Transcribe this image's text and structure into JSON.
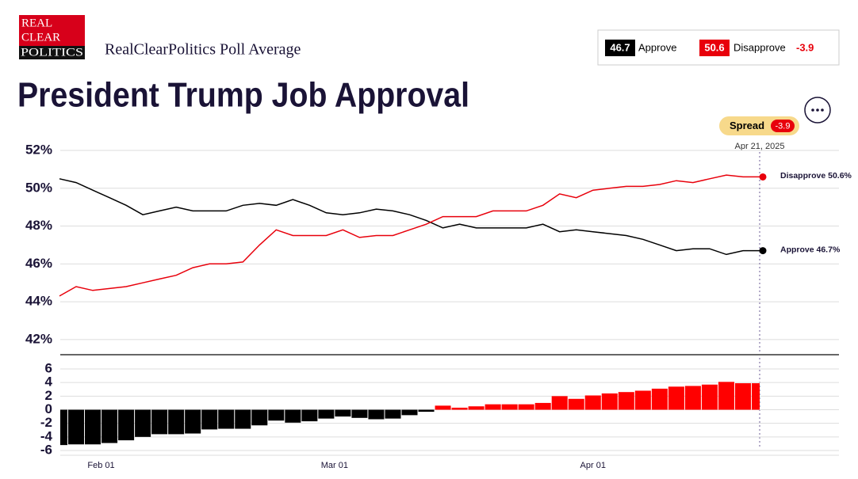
{
  "header": {
    "logo": [
      "REAL",
      "CLEAR",
      "POLITICS"
    ],
    "subtitle": "RealClearPolitics Poll Average",
    "summary": {
      "approve": 46.7,
      "disapprove": 50.6,
      "spread": -3.9
    }
  },
  "chart_data": [
    {
      "type": "line",
      "title": "President Trump Job Approval",
      "x": [
        "2025-01-27",
        "2025-01-29",
        "2025-01-31",
        "2025-02-02",
        "2025-02-04",
        "2025-02-06",
        "2025-02-08",
        "2025-02-10",
        "2025-02-12",
        "2025-02-14",
        "2025-02-16",
        "2025-02-18",
        "2025-02-20",
        "2025-02-22",
        "2025-02-24",
        "2025-02-26",
        "2025-02-28",
        "2025-03-02",
        "2025-03-04",
        "2025-03-06",
        "2025-03-08",
        "2025-03-10",
        "2025-03-12",
        "2025-03-14",
        "2025-03-16",
        "2025-03-18",
        "2025-03-20",
        "2025-03-22",
        "2025-03-24",
        "2025-03-26",
        "2025-03-28",
        "2025-03-30",
        "2025-04-01",
        "2025-04-03",
        "2025-04-05",
        "2025-04-07",
        "2025-04-09",
        "2025-04-11",
        "2025-04-13",
        "2025-04-15",
        "2025-04-17",
        "2025-04-19",
        "2025-04-21"
      ],
      "xlim": [
        "2025-01-27",
        "2025-04-21"
      ],
      "series": [
        {
          "name": "Approve",
          "color": "#000000",
          "values": [
            50.5,
            50.3,
            49.9,
            49.5,
            49.1,
            48.6,
            48.8,
            49.0,
            48.8,
            48.8,
            48.8,
            49.1,
            49.2,
            49.1,
            49.4,
            49.1,
            48.7,
            48.6,
            48.7,
            48.9,
            48.8,
            48.6,
            48.3,
            47.9,
            48.1,
            47.9,
            47.9,
            47.9,
            47.9,
            48.1,
            47.7,
            47.8,
            47.7,
            47.6,
            47.5,
            47.3,
            47.0,
            46.7,
            46.8,
            46.8,
            46.5,
            46.7,
            46.7
          ]
        },
        {
          "name": "Disapprove",
          "color": "#e8000b",
          "values": [
            44.3,
            44.8,
            44.6,
            44.7,
            44.8,
            45.0,
            45.2,
            45.4,
            45.8,
            46.0,
            46.0,
            46.1,
            47.0,
            47.8,
            47.5,
            47.5,
            47.5,
            47.8,
            47.4,
            47.5,
            47.5,
            47.8,
            48.1,
            48.5,
            48.5,
            48.5,
            48.8,
            48.8,
            48.8,
            49.1,
            49.7,
            49.5,
            49.9,
            50.0,
            50.1,
            50.1,
            50.2,
            50.4,
            50.3,
            50.5,
            50.7,
            50.6,
            50.6
          ]
        }
      ],
      "end_labels": [
        "Approve 46.7%",
        "Disapprove 50.6%"
      ],
      "annotation": {
        "label": "Spread",
        "value": -3.9,
        "date": "Apr 21, 2025"
      },
      "ylim": [
        41.2,
        52
      ],
      "yticks": [
        {
          "value": 52,
          "label": "52%"
        },
        {
          "value": 50,
          "label": "50%"
        },
        {
          "value": 48,
          "label": "48%"
        },
        {
          "value": 46,
          "label": "46%"
        },
        {
          "value": 44,
          "label": "44%"
        },
        {
          "value": 42,
          "label": "42%"
        }
      ],
      "grid": true
    },
    {
      "type": "bar",
      "x": [
        "2025-01-27",
        "2025-01-29",
        "2025-01-31",
        "2025-02-02",
        "2025-02-04",
        "2025-02-06",
        "2025-02-08",
        "2025-02-10",
        "2025-02-12",
        "2025-02-14",
        "2025-02-16",
        "2025-02-18",
        "2025-02-20",
        "2025-02-22",
        "2025-02-24",
        "2025-02-26",
        "2025-02-28",
        "2025-03-02",
        "2025-03-04",
        "2025-03-06",
        "2025-03-08",
        "2025-03-10",
        "2025-03-12",
        "2025-03-14",
        "2025-03-16",
        "2025-03-18",
        "2025-03-20",
        "2025-03-22",
        "2025-03-24",
        "2025-03-26",
        "2025-03-28",
        "2025-03-30",
        "2025-04-01",
        "2025-04-03",
        "2025-04-05",
        "2025-04-07",
        "2025-04-09",
        "2025-04-11",
        "2025-04-13",
        "2025-04-15",
        "2025-04-17",
        "2025-04-19",
        "2025-04-21"
      ],
      "xlim": [
        "2025-01-27",
        "2025-04-21"
      ],
      "values": [
        -5.2,
        -5.1,
        -5.1,
        -4.9,
        -4.5,
        -4.0,
        -3.6,
        -3.6,
        -3.5,
        -2.9,
        -2.8,
        -2.8,
        -2.3,
        -1.6,
        -1.9,
        -1.7,
        -1.3,
        -1.0,
        -1.2,
        -1.4,
        -1.3,
        -0.8,
        -0.3,
        0.6,
        0.3,
        0.5,
        0.8,
        0.8,
        0.8,
        1.0,
        2.0,
        1.6,
        2.1,
        2.4,
        2.6,
        2.8,
        3.1,
        3.4,
        3.5,
        3.7,
        4.1,
        3.9,
        3.9
      ],
      "color_positive": "#ff0000",
      "color_negative": "#000000",
      "ylim": [
        -6.7,
        8.1
      ],
      "yticks": [
        6,
        4,
        2,
        0,
        -2,
        -4,
        -6
      ],
      "xticks": [
        {
          "value": "2025-02-01",
          "label": "Feb 01"
        },
        {
          "value": "2025-03-01",
          "label": "Mar 01"
        },
        {
          "value": "2025-04-01",
          "label": "Apr 01"
        }
      ],
      "grid": true
    }
  ]
}
